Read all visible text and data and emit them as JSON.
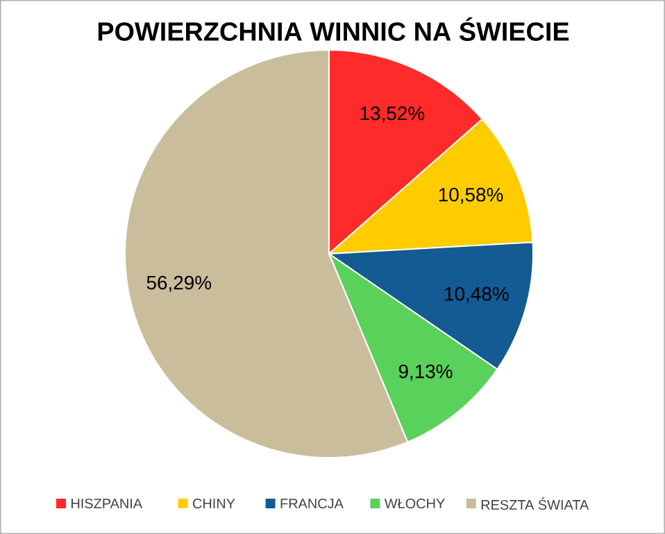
{
  "chart_data": {
    "type": "pie",
    "title": "POWIERZCHNIA WINNIC NA ŚWIECIE",
    "categories": [
      "HISZPANIA",
      "CHINY",
      "FRANCJA",
      "WŁOCHY",
      "RESZTA ŚWIATA"
    ],
    "values": [
      13.52,
      10.58,
      10.48,
      9.13,
      56.29
    ],
    "colors": [
      "#ff2a2a",
      "#ffcc00",
      "#135b92",
      "#5ad15a",
      "#c9bd9b"
    ],
    "value_labels": [
      "13,52%",
      "10,58%",
      "10,48%",
      "9,13%",
      "56,29%"
    ],
    "legend": "bottom"
  }
}
